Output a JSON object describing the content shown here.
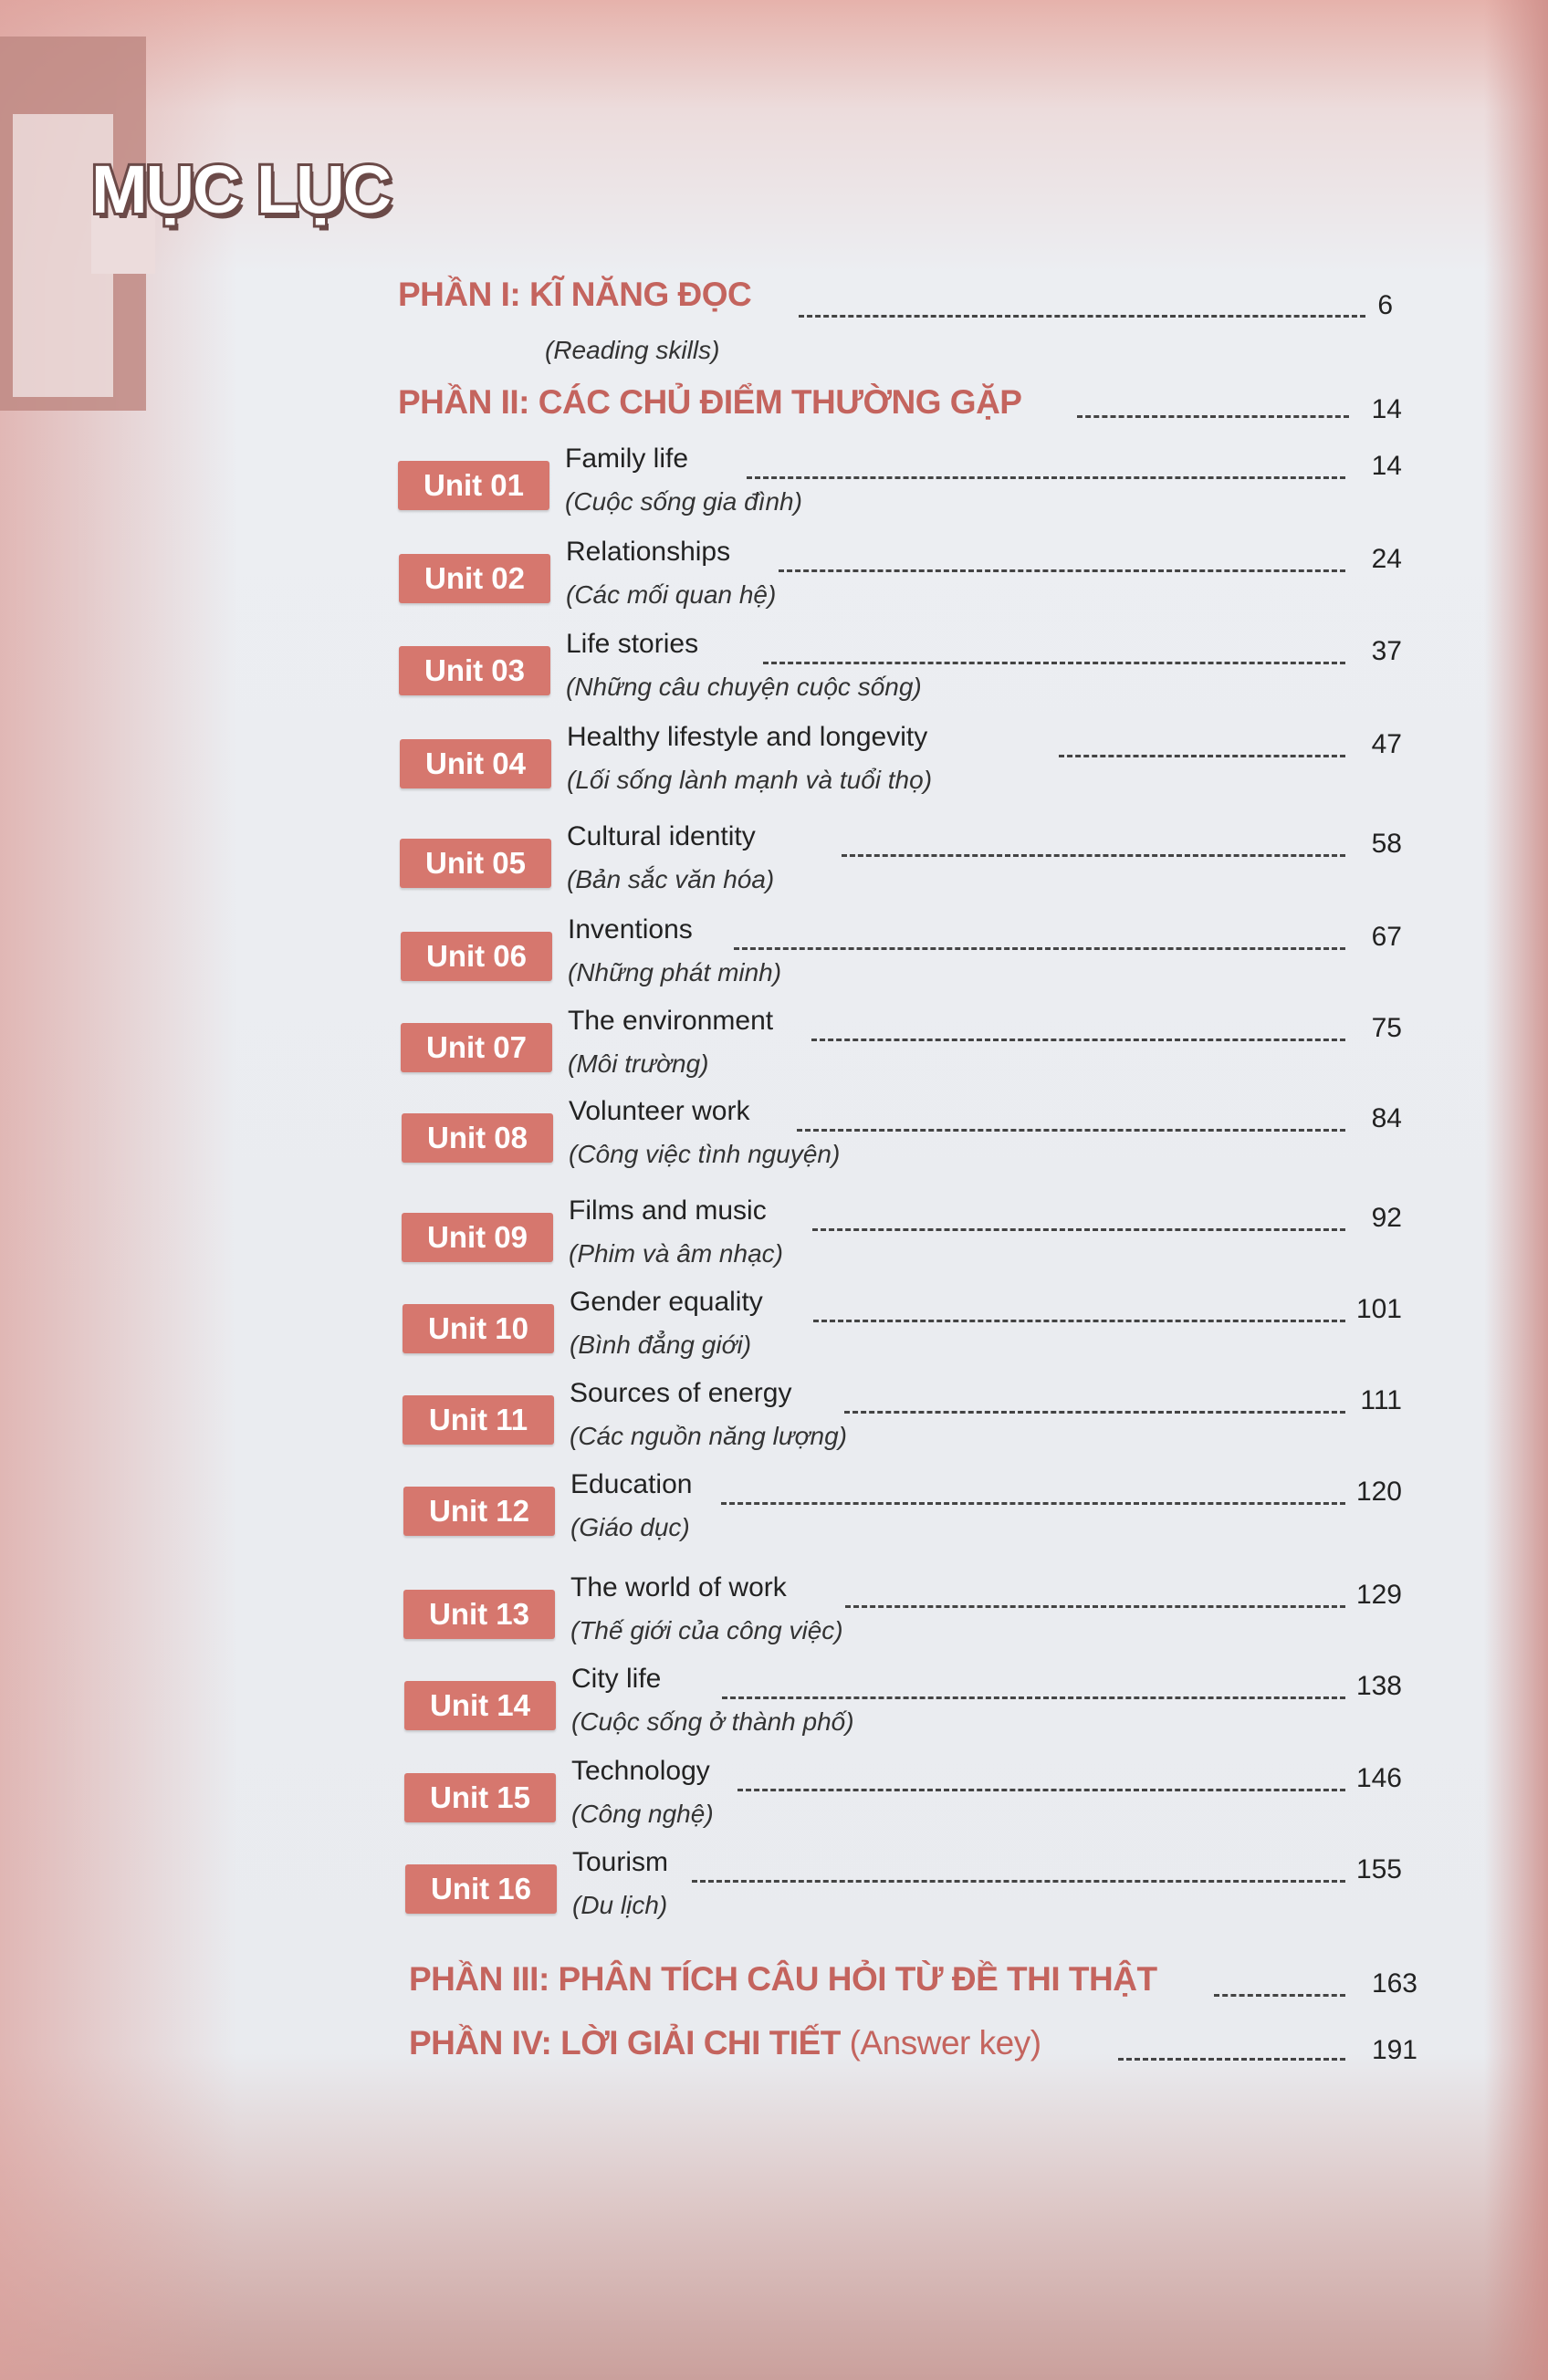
{
  "title": "MỤC LỤC",
  "parts": [
    {
      "label": "PHẦN I: KĨ NĂNG ĐỌC",
      "subtitle": "(Reading skills)",
      "page": "6"
    },
    {
      "label": "PHẦN II: CÁC CHỦ ĐIỂM THƯỜNG GẶP",
      "page": "14"
    },
    {
      "label": "PHẦN III: PHÂN TÍCH CÂU HỎI TỪ ĐỀ THI THẬT",
      "page": "163"
    },
    {
      "label": "PHẦN IV: LỜI GIẢI CHI TIẾT",
      "suffix": "(Answer key)",
      "page": "191"
    }
  ],
  "units": [
    {
      "badge": "Unit 01",
      "title": "Family life",
      "subtitle": "(Cuộc sống gia đình)",
      "page": "14"
    },
    {
      "badge": "Unit 02",
      "title": "Relationships",
      "subtitle": "(Các mối quan hệ)",
      "page": "24"
    },
    {
      "badge": "Unit 03",
      "title": "Life stories",
      "subtitle": "(Những câu chuyện cuộc sống)",
      "page": "37"
    },
    {
      "badge": "Unit 04",
      "title": "Healthy lifestyle and longevity",
      "subtitle": "(Lối sống lành mạnh và tuổi thọ)",
      "page": "47"
    },
    {
      "badge": "Unit 05",
      "title": "Cultural identity",
      "subtitle": "(Bản sắc văn hóa)",
      "page": "58"
    },
    {
      "badge": "Unit 06",
      "title": "Inventions",
      "subtitle": "(Những phát minh)",
      "page": "67"
    },
    {
      "badge": "Unit 07",
      "title": "The environment",
      "subtitle": "(Môi trường)",
      "page": "75"
    },
    {
      "badge": "Unit 08",
      "title": "Volunteer work",
      "subtitle": "(Công việc tình nguyện)",
      "page": "84"
    },
    {
      "badge": "Unit 09",
      "title": "Films and music",
      "subtitle": "(Phim và âm nhạc)",
      "page": "92"
    },
    {
      "badge": "Unit 10",
      "title": "Gender equality",
      "subtitle": "(Bình đẳng giới)",
      "page": "101"
    },
    {
      "badge": "Unit 11",
      "title": "Sources of energy",
      "subtitle": "(Các nguồn năng lượng)",
      "page": "111"
    },
    {
      "badge": "Unit 12",
      "title": "Education",
      "subtitle": "(Giáo dục)",
      "page": "120"
    },
    {
      "badge": "Unit 13",
      "title": "The world of work",
      "subtitle": "(Thế giới của công việc)",
      "page": "129"
    },
    {
      "badge": "Unit 14",
      "title": "City life",
      "subtitle": "(Cuộc sống ở thành phố)",
      "page": "138"
    },
    {
      "badge": "Unit 15",
      "title": "Technology",
      "subtitle": "(Công nghệ)",
      "page": "146"
    },
    {
      "badge": "Unit 16",
      "title": "Tourism",
      "subtitle": "(Du lịch)",
      "page": "155"
    }
  ],
  "colors": {
    "heading": "#c4645e",
    "badge": "#d6776e",
    "title_outline": "#6b4a48"
  }
}
